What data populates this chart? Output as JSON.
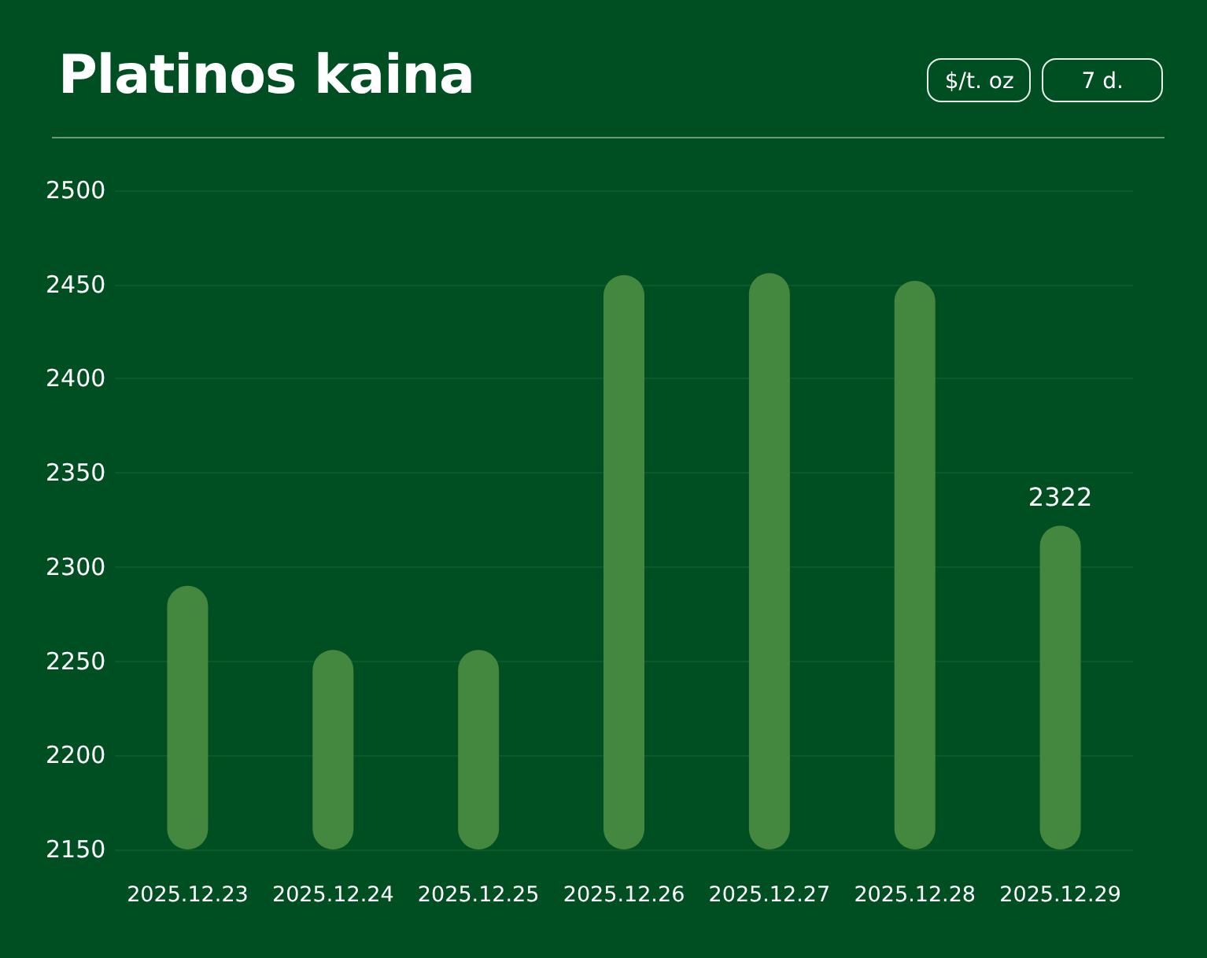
{
  "chart_data": {
    "type": "bar",
    "title": "Platinos kaina",
    "annotations": [
      "$/t. oz",
      "7 d."
    ],
    "categories": [
      "2025.12.23",
      "2025.12.24",
      "2025.12.25",
      "2025.12.26",
      "2025.12.27",
      "2025.12.28",
      "2025.12.29"
    ],
    "values": [
      2290,
      2256,
      2256,
      2455,
      2456,
      2452,
      2322
    ],
    "value_labels": [
      null,
      null,
      null,
      null,
      null,
      null,
      "2322"
    ],
    "color": "#44873e",
    "ylim": [
      2150,
      2500
    ],
    "yticks": [
      2150,
      2200,
      2250,
      2300,
      2350,
      2400,
      2450,
      2500
    ],
    "grid": "y"
  }
}
